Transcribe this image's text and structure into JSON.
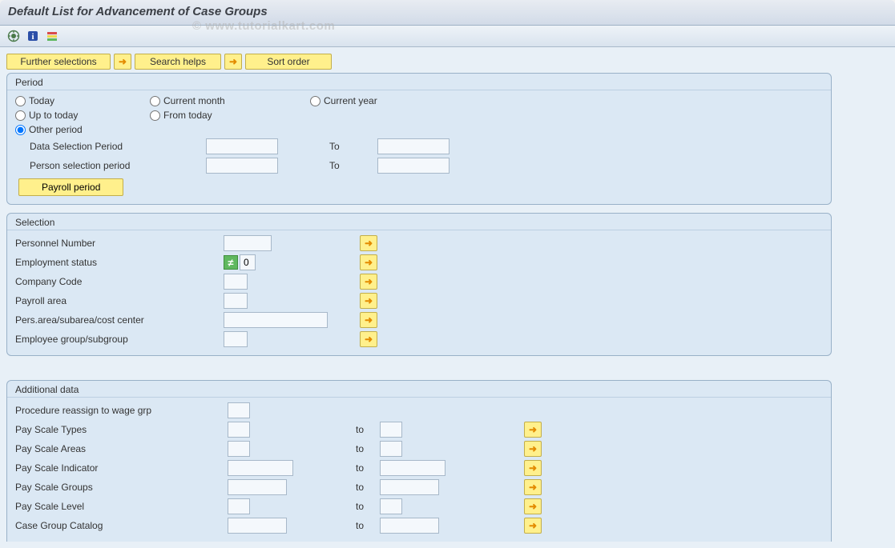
{
  "title": "Default List for Advancement of Case Groups",
  "watermark": "© www.tutorialkart.com",
  "toolbar": {
    "execute_icon": "execute-icon",
    "info_icon": "info-icon",
    "ruler_icon": "ruler-icon"
  },
  "top_buttons": {
    "further_selections": "Further selections",
    "search_helps": "Search helps",
    "sort_order": "Sort order"
  },
  "panels": {
    "period": {
      "title": "Period",
      "radios": {
        "today": "Today",
        "current_month": "Current month",
        "current_year": "Current year",
        "up_to_today": "Up to today",
        "from_today": "From today",
        "other_period": "Other period"
      },
      "selected": "other_period",
      "fields": {
        "data_sel_label": "Data Selection Period",
        "person_sel_label": "Person selection period",
        "to_label": "To"
      },
      "payroll_btn": "Payroll period"
    },
    "selection": {
      "title": "Selection",
      "rows": [
        {
          "key": "personnel_number",
          "label": "Personnel Number",
          "type": "medium"
        },
        {
          "key": "employment_status",
          "label": "Employment status",
          "type": "status",
          "value": "0"
        },
        {
          "key": "company_code",
          "label": "Company Code",
          "type": "short"
        },
        {
          "key": "payroll_area",
          "label": "Payroll area",
          "type": "short"
        },
        {
          "key": "pers_area",
          "label": "Pers.area/subarea/cost center",
          "type": "long"
        },
        {
          "key": "employee_group",
          "label": "Employee group/subgroup",
          "type": "short"
        }
      ]
    },
    "additional": {
      "title": "Additional data",
      "to_label": "to",
      "rows": [
        {
          "key": "procedure",
          "label": "Procedure reassign to wage grp",
          "pair": false
        },
        {
          "key": "pay_scale_types",
          "label": "Pay Scale Types",
          "pair": true,
          "input_w": 28
        },
        {
          "key": "pay_scale_areas",
          "label": "Pay Scale Areas",
          "pair": true,
          "input_w": 28
        },
        {
          "key": "pay_scale_indicator",
          "label": "Pay Scale Indicator",
          "pair": true,
          "input_w": 82
        },
        {
          "key": "pay_scale_groups",
          "label": "Pay Scale Groups",
          "pair": true,
          "input_w": 74
        },
        {
          "key": "pay_scale_level",
          "label": "Pay Scale Level",
          "pair": true,
          "input_w": 28
        },
        {
          "key": "case_group_catalog",
          "label": "Case Group Catalog",
          "pair": true,
          "input_w": 74
        }
      ]
    }
  },
  "colors": {
    "panel_bg": "#dbe8f4",
    "panel_border": "#99b1c8",
    "yellow_btn": "#fff08c",
    "yellow_btn_border": "#c2ae4a",
    "input_border": "#a7b8c9",
    "input_bg": "#f4f8fc"
  }
}
